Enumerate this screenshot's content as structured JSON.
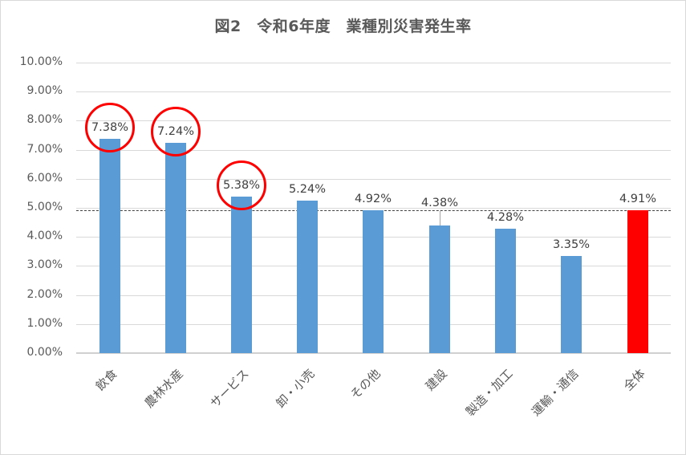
{
  "chart_data": {
    "type": "bar",
    "title": "図2　令和6年度　業種別災害発生率",
    "xlabel": "",
    "ylabel": "",
    "ylim": [
      0,
      10
    ],
    "y_ticks": [
      "0.00%",
      "1.00%",
      "2.00%",
      "3.00%",
      "4.00%",
      "5.00%",
      "6.00%",
      "7.00%",
      "8.00%",
      "9.00%",
      "10.00%"
    ],
    "grid": true,
    "legend": "none",
    "categories": [
      "飲食",
      "農林水産",
      "サービス",
      "卸・小売",
      "その他",
      "建設",
      "製造・加工",
      "運輸・通信",
      "全体"
    ],
    "values": [
      7.38,
      7.24,
      5.38,
      5.24,
      4.92,
      4.38,
      4.28,
      3.35,
      4.91
    ],
    "value_labels": [
      "7.38%",
      "7.24%",
      "5.38%",
      "5.24%",
      "4.92%",
      "4.38%",
      "4.28%",
      "3.35%",
      "4.91%"
    ],
    "bar_colors": [
      "#5b9bd5",
      "#5b9bd5",
      "#5b9bd5",
      "#5b9bd5",
      "#5b9bd5",
      "#5b9bd5",
      "#5b9bd5",
      "#5b9bd5",
      "#ff0000"
    ],
    "reference_line": {
      "value": 4.91,
      "style": "dashed",
      "color": "#404040"
    },
    "annotations": [
      {
        "type": "circle",
        "target": "飲食",
        "color": "#ff0000"
      },
      {
        "type": "circle",
        "target": "農林水産",
        "color": "#ff0000"
      },
      {
        "type": "circle",
        "target": "サービス",
        "color": "#ff0000"
      }
    ]
  },
  "colors": {
    "bar": "#5b9bd5",
    "highlight": "#ff0000",
    "grid": "#d9d9d9",
    "text": "#595959"
  }
}
